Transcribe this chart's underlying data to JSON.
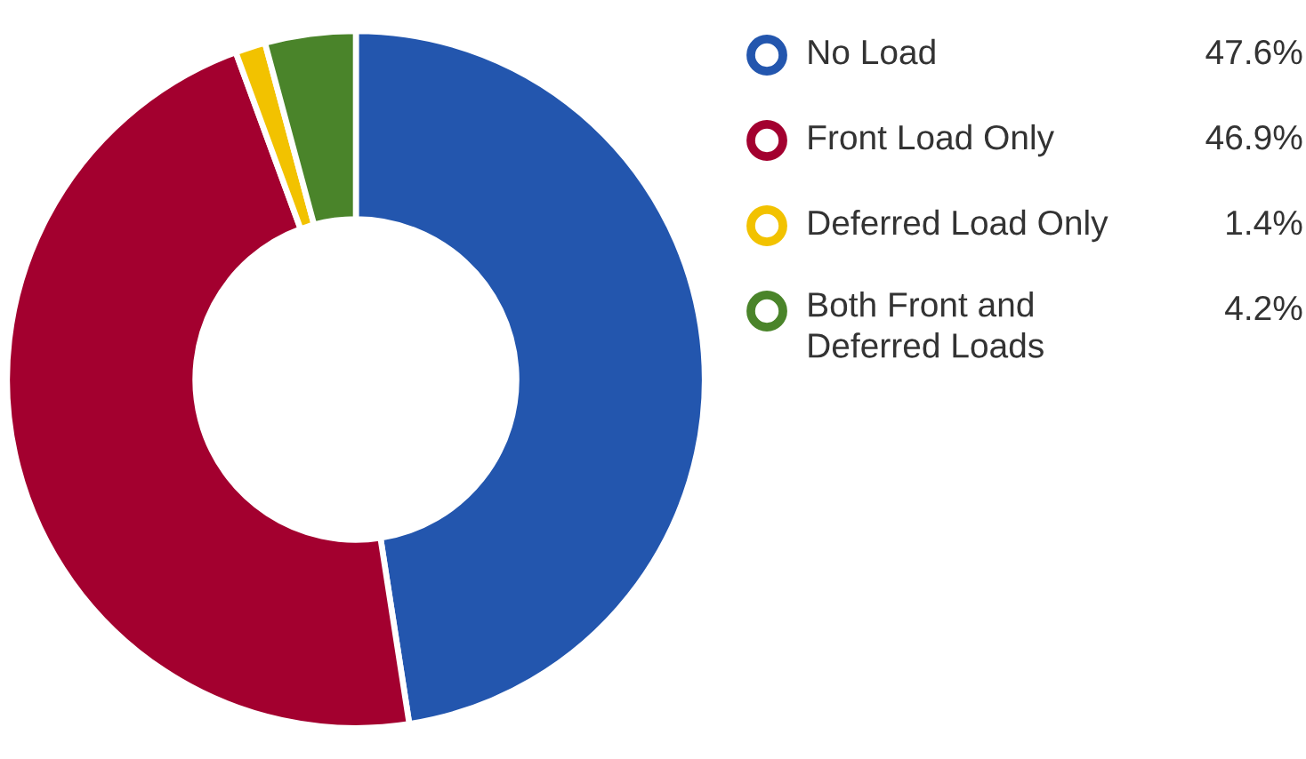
{
  "chart_data": {
    "type": "donut",
    "categories": [
      "No Load",
      "Front Load Only",
      "Deferred Load Only",
      "Both Front and Deferred Loads"
    ],
    "values": [
      47.6,
      46.9,
      1.4,
      4.2
    ],
    "colors": [
      "#2356ae",
      "#a3002f",
      "#f2c200",
      "#4a842a"
    ],
    "value_labels": [
      "47.6%",
      "46.9%",
      "1.4%",
      "4.2%"
    ],
    "legend": "right"
  }
}
